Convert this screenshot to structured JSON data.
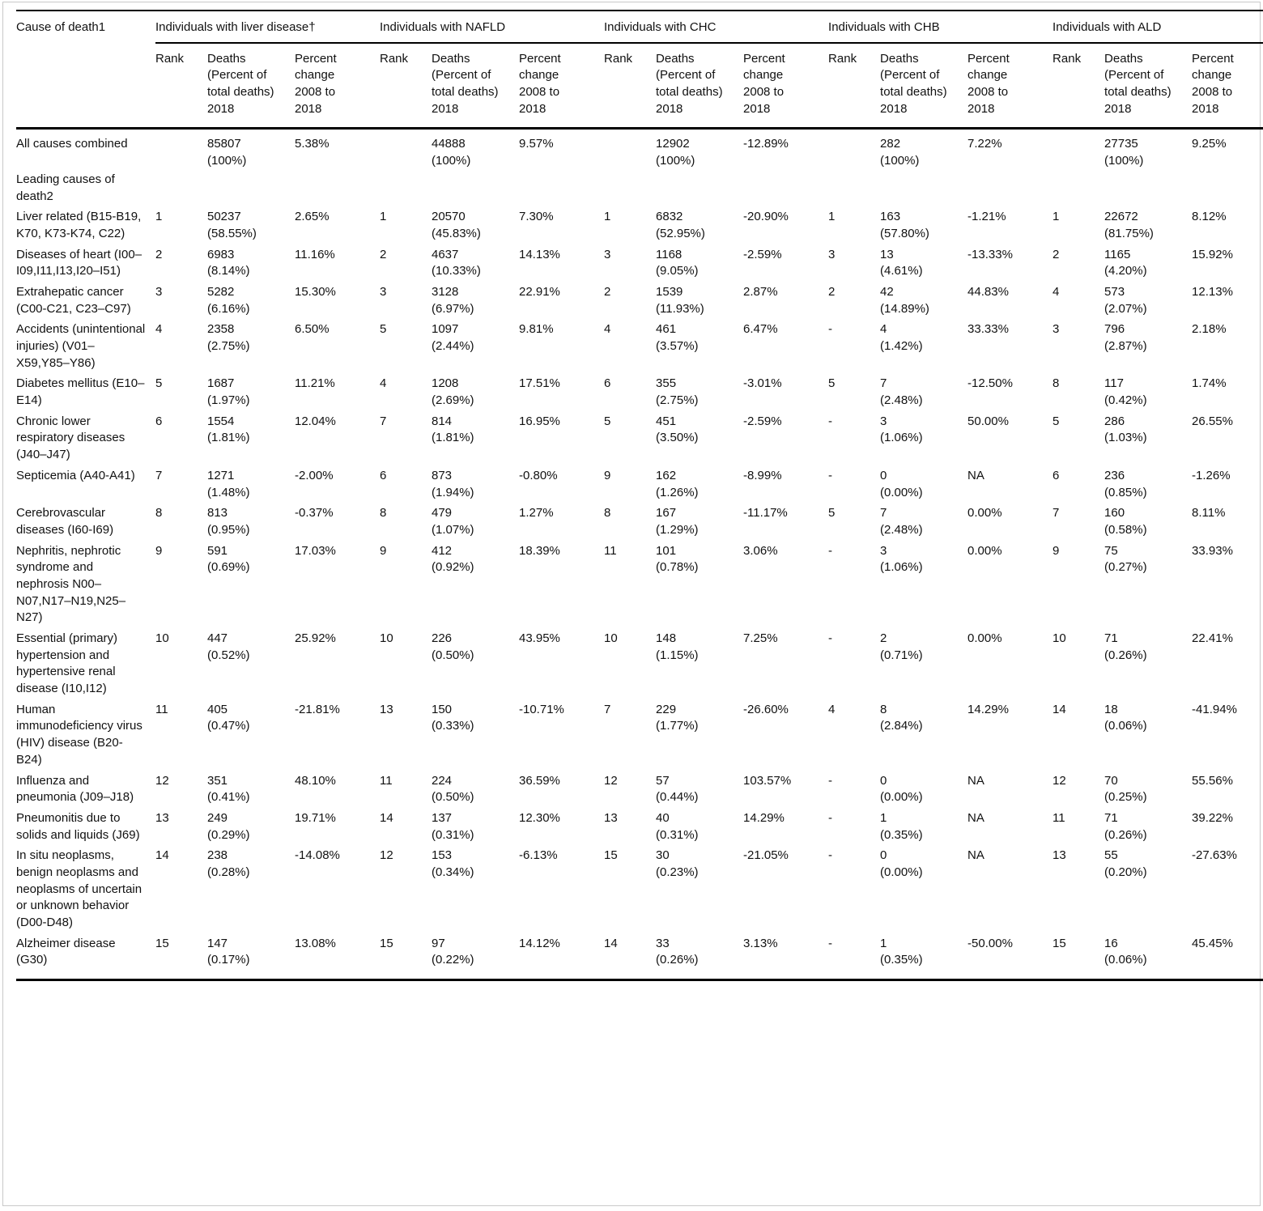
{
  "table": {
    "corner_header": "Cause of death1",
    "groups": [
      {
        "label": "Individuals with liver disease†"
      },
      {
        "label": "Individuals with NAFLD"
      },
      {
        "label": "Individuals with CHC"
      },
      {
        "label": "Individuals with CHB"
      },
      {
        "label": "Individuals with ALD"
      }
    ],
    "subheaders": {
      "rank": "Rank",
      "deaths": "Deaths\n(Percent of\ntotal deaths)\n2018",
      "change": "Percent\nchange\n2008 to\n2018"
    },
    "rows": [
      {
        "cause": "All causes combined",
        "section_label": false,
        "cells": [
          {
            "rank": "",
            "deaths": "85807\n(100%)",
            "change": "5.38%"
          },
          {
            "rank": "",
            "deaths": "44888\n(100%)",
            "change": "9.57%"
          },
          {
            "rank": "",
            "deaths": "12902\n(100%)",
            "change": "-12.89%"
          },
          {
            "rank": "",
            "deaths": "282\n(100%)",
            "change": "7.22%"
          },
          {
            "rank": "",
            "deaths": "27735\n(100%)",
            "change": "9.25%"
          }
        ]
      },
      {
        "cause": "Leading causes of death2",
        "section_label": true,
        "cells": [
          {
            "rank": "",
            "deaths": "",
            "change": ""
          },
          {
            "rank": "",
            "deaths": "",
            "change": ""
          },
          {
            "rank": "",
            "deaths": "",
            "change": ""
          },
          {
            "rank": "",
            "deaths": "",
            "change": ""
          },
          {
            "rank": "",
            "deaths": "",
            "change": ""
          }
        ]
      },
      {
        "cause": "Liver related (B15-B19, K70, K73-K74, C22)",
        "section_label": false,
        "cells": [
          {
            "rank": "1",
            "deaths": "50237\n(58.55%)",
            "change": "2.65%"
          },
          {
            "rank": "1",
            "deaths": "20570\n(45.83%)",
            "change": "7.30%"
          },
          {
            "rank": "1",
            "deaths": "6832\n(52.95%)",
            "change": "-20.90%"
          },
          {
            "rank": "1",
            "deaths": "163\n(57.80%)",
            "change": "-1.21%"
          },
          {
            "rank": "1",
            "deaths": "22672\n(81.75%)",
            "change": "8.12%"
          }
        ]
      },
      {
        "cause": "Diseases of heart (I00–I09,I11,I13,I20–I51)",
        "section_label": false,
        "cells": [
          {
            "rank": "2",
            "deaths": "6983\n(8.14%)",
            "change": "11.16%"
          },
          {
            "rank": "2",
            "deaths": "4637\n(10.33%)",
            "change": "14.13%"
          },
          {
            "rank": "3",
            "deaths": "1168\n(9.05%)",
            "change": "-2.59%"
          },
          {
            "rank": "3",
            "deaths": "13\n(4.61%)",
            "change": "-13.33%"
          },
          {
            "rank": "2",
            "deaths": "1165\n(4.20%)",
            "change": "15.92%"
          }
        ]
      },
      {
        "cause": "Extrahepatic cancer (C00-C21, C23–C97)",
        "section_label": false,
        "cells": [
          {
            "rank": "3",
            "deaths": "5282\n(6.16%)",
            "change": "15.30%"
          },
          {
            "rank": "3",
            "deaths": "3128\n(6.97%)",
            "change": "22.91%"
          },
          {
            "rank": "2",
            "deaths": "1539\n(11.93%)",
            "change": "2.87%"
          },
          {
            "rank": "2",
            "deaths": "42\n(14.89%)",
            "change": "44.83%"
          },
          {
            "rank": "4",
            "deaths": "573\n(2.07%)",
            "change": "12.13%"
          }
        ]
      },
      {
        "cause": "Accidents (unintentional injuries) (V01–X59,Y85–Y86)",
        "section_label": false,
        "cells": [
          {
            "rank": "4",
            "deaths": "2358\n(2.75%)",
            "change": "6.50%"
          },
          {
            "rank": "5",
            "deaths": "1097\n(2.44%)",
            "change": "9.81%"
          },
          {
            "rank": "4",
            "deaths": "461\n(3.57%)",
            "change": "6.47%"
          },
          {
            "rank": "-",
            "deaths": "4\n(1.42%)",
            "change": "33.33%"
          },
          {
            "rank": "3",
            "deaths": "796\n(2.87%)",
            "change": "2.18%"
          }
        ]
      },
      {
        "cause": "Diabetes mellitus (E10–E14)",
        "section_label": false,
        "cells": [
          {
            "rank": "5",
            "deaths": "1687\n(1.97%)",
            "change": "11.21%"
          },
          {
            "rank": "4",
            "deaths": "1208\n(2.69%)",
            "change": "17.51%"
          },
          {
            "rank": "6",
            "deaths": "355\n(2.75%)",
            "change": "-3.01%"
          },
          {
            "rank": "5",
            "deaths": "7\n(2.48%)",
            "change": "-12.50%"
          },
          {
            "rank": "8",
            "deaths": "117\n(0.42%)",
            "change": "1.74%"
          }
        ]
      },
      {
        "cause": "Chronic lower respiratory diseases (J40–J47)",
        "section_label": false,
        "cells": [
          {
            "rank": "6",
            "deaths": "1554\n(1.81%)",
            "change": "12.04%"
          },
          {
            "rank": "7",
            "deaths": "814\n(1.81%)",
            "change": "16.95%"
          },
          {
            "rank": "5",
            "deaths": "451\n(3.50%)",
            "change": "-2.59%"
          },
          {
            "rank": "-",
            "deaths": "3\n(1.06%)",
            "change": "50.00%"
          },
          {
            "rank": "5",
            "deaths": "286\n(1.03%)",
            "change": "26.55%"
          }
        ]
      },
      {
        "cause": "Septicemia (A40-A41)",
        "section_label": false,
        "cells": [
          {
            "rank": "7",
            "deaths": "1271\n(1.48%)",
            "change": "-2.00%"
          },
          {
            "rank": "6",
            "deaths": "873\n(1.94%)",
            "change": "-0.80%"
          },
          {
            "rank": "9",
            "deaths": "162\n(1.26%)",
            "change": "-8.99%"
          },
          {
            "rank": "-",
            "deaths": "0\n(0.00%)",
            "change": "NA"
          },
          {
            "rank": "6",
            "deaths": "236\n(0.85%)",
            "change": "-1.26%"
          }
        ]
      },
      {
        "cause": "Cerebrovascular diseases (I60-I69)",
        "section_label": false,
        "cells": [
          {
            "rank": "8",
            "deaths": "813\n(0.95%)",
            "change": "-0.37%"
          },
          {
            "rank": "8",
            "deaths": "479\n(1.07%)",
            "change": "1.27%"
          },
          {
            "rank": "8",
            "deaths": "167\n(1.29%)",
            "change": "-11.17%"
          },
          {
            "rank": "5",
            "deaths": "7\n(2.48%)",
            "change": "0.00%"
          },
          {
            "rank": "7",
            "deaths": "160\n(0.58%)",
            "change": "8.11%"
          }
        ]
      },
      {
        "cause": "Nephritis, nephrotic syndrome and nephrosis N00–N07,N17–N19,N25–N27)",
        "section_label": false,
        "cells": [
          {
            "rank": "9",
            "deaths": "591\n(0.69%)",
            "change": "17.03%"
          },
          {
            "rank": "9",
            "deaths": "412\n(0.92%)",
            "change": "18.39%"
          },
          {
            "rank": "11",
            "deaths": "101\n(0.78%)",
            "change": "3.06%"
          },
          {
            "rank": "-",
            "deaths": "3\n(1.06%)",
            "change": "0.00%"
          },
          {
            "rank": "9",
            "deaths": "75\n(0.27%)",
            "change": "33.93%"
          }
        ]
      },
      {
        "cause": "Essential (primary) hypertension and hypertensive renal disease (I10,I12)",
        "section_label": false,
        "cells": [
          {
            "rank": "10",
            "deaths": "447\n(0.52%)",
            "change": "25.92%"
          },
          {
            "rank": "10",
            "deaths": "226\n(0.50%)",
            "change": "43.95%"
          },
          {
            "rank": "10",
            "deaths": "148\n(1.15%)",
            "change": "7.25%"
          },
          {
            "rank": "-",
            "deaths": "2\n(0.71%)",
            "change": "0.00%"
          },
          {
            "rank": "10",
            "deaths": "71\n(0.26%)",
            "change": "22.41%"
          }
        ]
      },
      {
        "cause": "Human immunodeficiency virus (HIV) disease (B20-B24)",
        "section_label": false,
        "cells": [
          {
            "rank": "11",
            "deaths": "405\n(0.47%)",
            "change": "-21.81%"
          },
          {
            "rank": "13",
            "deaths": "150\n(0.33%)",
            "change": "-10.71%"
          },
          {
            "rank": "7",
            "deaths": "229\n(1.77%)",
            "change": "-26.60%"
          },
          {
            "rank": "4",
            "deaths": "8\n(2.84%)",
            "change": "14.29%"
          },
          {
            "rank": "14",
            "deaths": "18\n(0.06%)",
            "change": "-41.94%"
          }
        ]
      },
      {
        "cause": "Influenza and pneumonia (J09–J18)",
        "section_label": false,
        "cells": [
          {
            "rank": "12",
            "deaths": "351\n(0.41%)",
            "change": "48.10%"
          },
          {
            "rank": "11",
            "deaths": "224\n(0.50%)",
            "change": "36.59%"
          },
          {
            "rank": "12",
            "deaths": "57\n(0.44%)",
            "change": "103.57%"
          },
          {
            "rank": "-",
            "deaths": "0\n(0.00%)",
            "change": "NA"
          },
          {
            "rank": "12",
            "deaths": "70\n(0.25%)",
            "change": "55.56%"
          }
        ]
      },
      {
        "cause": "Pneumonitis due to solids and liquids (J69)",
        "section_label": false,
        "cells": [
          {
            "rank": "13",
            "deaths": "249\n(0.29%)",
            "change": "19.71%"
          },
          {
            "rank": "14",
            "deaths": "137\n(0.31%)",
            "change": "12.30%"
          },
          {
            "rank": "13",
            "deaths": "40\n(0.31%)",
            "change": "14.29%"
          },
          {
            "rank": "-",
            "deaths": "1\n(0.35%)",
            "change": "NA"
          },
          {
            "rank": "11",
            "deaths": "71\n(0.26%)",
            "change": "39.22%"
          }
        ]
      },
      {
        "cause": "In situ neoplasms, benign neoplasms and neoplasms of uncertain or unknown behavior (D00-D48)",
        "section_label": false,
        "cells": [
          {
            "rank": "14",
            "deaths": "238\n(0.28%)",
            "change": "-14.08%"
          },
          {
            "rank": "12",
            "deaths": "153\n(0.34%)",
            "change": "-6.13%"
          },
          {
            "rank": "15",
            "deaths": "30\n(0.23%)",
            "change": "-21.05%"
          },
          {
            "rank": "-",
            "deaths": "0\n(0.00%)",
            "change": "NA"
          },
          {
            "rank": "13",
            "deaths": "55\n(0.20%)",
            "change": "-27.63%"
          }
        ]
      },
      {
        "cause": "Alzheimer disease (G30)",
        "section_label": false,
        "cells": [
          {
            "rank": "15",
            "deaths": "147\n(0.17%)",
            "change": "13.08%"
          },
          {
            "rank": "15",
            "deaths": "97\n(0.22%)",
            "change": "14.12%"
          },
          {
            "rank": "14",
            "deaths": "33\n(0.26%)",
            "change": "3.13%"
          },
          {
            "rank": "-",
            "deaths": "1\n(0.35%)",
            "change": "-50.00%"
          },
          {
            "rank": "15",
            "deaths": "16\n(0.06%)",
            "change": "45.45%"
          }
        ]
      }
    ]
  }
}
